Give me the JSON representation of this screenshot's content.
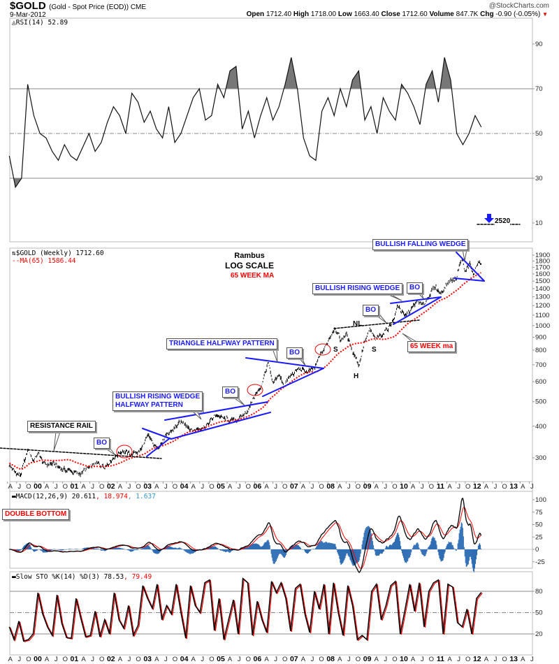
{
  "header": {
    "symbol": "$GOLD",
    "description": "(Gold - Spot Price (EOD)) CME",
    "date": "9-Mar-2012",
    "copyright": "@StockCharts.com",
    "open_label": "Open",
    "open": "1712.40",
    "high_label": "High",
    "high": "1718.00",
    "low_label": "Low",
    "low": "1663.40",
    "close_label": "Close",
    "close": "1712.60",
    "volume_label": "Volume",
    "volume": "847.7K",
    "chg_label": "Chg",
    "chg": "-0.90 (-0.05%)",
    "chg_color": "#e00000"
  },
  "chart_data": {
    "type": "line",
    "x_unit": "decimal year",
    "x_range": [
      1999.3,
      2013.6
    ],
    "x_ticks": [
      "A",
      "J",
      "O",
      "00",
      "A",
      "J",
      "O",
      "01",
      "A",
      "J",
      "O",
      "02",
      "A",
      "J",
      "O",
      "03",
      "A",
      "J",
      "O",
      "04",
      "A",
      "J",
      "O",
      "05",
      "A",
      "J",
      "O",
      "06",
      "A",
      "J",
      "O",
      "07",
      "A",
      "J",
      "O",
      "08",
      "A",
      "J",
      "O",
      "09",
      "A",
      "J",
      "O",
      "10",
      "A",
      "J",
      "O",
      "11",
      "A",
      "J",
      "O",
      "12",
      "A",
      "J",
      "O",
      "13",
      "A",
      "J"
    ],
    "rsi": {
      "legend": "RSI(14) 52.89",
      "levels": [
        70,
        50,
        30
      ],
      "y_ticks": [
        "90",
        "70",
        "50",
        "30",
        "10"
      ],
      "values": [
        40,
        26,
        30,
        72,
        58,
        50,
        48,
        42,
        38,
        45,
        40,
        38,
        44,
        50,
        42,
        46,
        55,
        62,
        58,
        50,
        68,
        64,
        55,
        60,
        52,
        48,
        62,
        46,
        50,
        58,
        66,
        70,
        56,
        58,
        72,
        66,
        78,
        80,
        52,
        60,
        48,
        58,
        66,
        56,
        62,
        72,
        84,
        70,
        48,
        40,
        38,
        60,
        66,
        58,
        70,
        62,
        74,
        78,
        56,
        62,
        50,
        66,
        60,
        56,
        72,
        68,
        62,
        54,
        72,
        78,
        64,
        84,
        74,
        50,
        45,
        50,
        58,
        52.89
      ],
      "annotation_value": "2520"
    },
    "price": {
      "legend": "$GOLD (Weekly) 1712.60",
      "ma_legend": "MA(65) 1586.44",
      "scale": "log",
      "y_ticks": [
        1900,
        1800,
        1700,
        1600,
        1500,
        1400,
        1300,
        1200,
        1100,
        1000,
        900,
        800,
        700,
        600,
        500,
        400,
        300
      ],
      "anchors": [
        [
          1999.3,
          282
        ],
        [
          1999.45,
          262
        ],
        [
          1999.6,
          255
        ],
        [
          1999.75,
          300
        ],
        [
          1999.82,
          325
        ],
        [
          1999.95,
          292
        ],
        [
          2000.1,
          312
        ],
        [
          2000.25,
          282
        ],
        [
          2000.5,
          284
        ],
        [
          2000.75,
          270
        ],
        [
          2001.0,
          266
        ],
        [
          2001.2,
          258
        ],
        [
          2001.4,
          270
        ],
        [
          2001.7,
          284
        ],
        [
          2001.9,
          278
        ],
        [
          2002.1,
          296
        ],
        [
          2002.4,
          322
        ],
        [
          2002.6,
          308
        ],
        [
          2002.9,
          322
        ],
        [
          2003.1,
          365
        ],
        [
          2003.3,
          328
        ],
        [
          2003.5,
          348
        ],
        [
          2003.7,
          380
        ],
        [
          2003.95,
          410
        ],
        [
          2004.1,
          415
        ],
        [
          2004.3,
          382
        ],
        [
          2004.5,
          395
        ],
        [
          2004.7,
          405
        ],
        [
          2004.95,
          445
        ],
        [
          2005.2,
          425
        ],
        [
          2005.45,
          420
        ],
        [
          2005.65,
          435
        ],
        [
          2005.85,
          470
        ],
        [
          2006.0,
          530
        ],
        [
          2006.15,
          560
        ],
        [
          2006.37,
          710
        ],
        [
          2006.5,
          580
        ],
        [
          2006.65,
          640
        ],
        [
          2006.8,
          585
        ],
        [
          2007.0,
          635
        ],
        [
          2007.2,
          675
        ],
        [
          2007.45,
          655
        ],
        [
          2007.65,
          680
        ],
        [
          2007.78,
          760
        ],
        [
          2007.9,
          805
        ],
        [
          2008.05,
          900
        ],
        [
          2008.2,
          990
        ],
        [
          2008.35,
          870
        ],
        [
          2008.5,
          930
        ],
        [
          2008.62,
          830
        ],
        [
          2008.78,
          740
        ],
        [
          2008.85,
          700
        ],
        [
          2009.0,
          860
        ],
        [
          2009.15,
          960
        ],
        [
          2009.3,
          880
        ],
        [
          2009.5,
          935
        ],
        [
          2009.65,
          980
        ],
        [
          2009.8,
          1060
        ],
        [
          2009.92,
          1210
        ],
        [
          2010.1,
          1080
        ],
        [
          2010.3,
          1170
        ],
        [
          2010.45,
          1250
        ],
        [
          2010.6,
          1190
        ],
        [
          2010.8,
          1350
        ],
        [
          2010.95,
          1420
        ],
        [
          2011.08,
          1340
        ],
        [
          2011.3,
          1500
        ],
        [
          2011.5,
          1530
        ],
        [
          2011.65,
          1880
        ],
        [
          2011.75,
          1620
        ],
        [
          2011.87,
          1760
        ],
        [
          2011.97,
          1580
        ],
        [
          2012.07,
          1750
        ],
        [
          2012.15,
          1780
        ],
        [
          2012.19,
          1712.6
        ]
      ],
      "ma_period": 65
    },
    "macd": {
      "legend_main": "MACD(12,26,9) 20.611",
      "legend_signal": ", 18.974",
      "legend_hist": ", 1.637",
      "signal_color": "#ff0000",
      "hist_color": "#2e6db4",
      "y_ticks": [
        100,
        75,
        50,
        25,
        0,
        -25
      ]
    },
    "sto": {
      "legend_main": "Slow STO %K(14) %D(3) 78.53",
      "legend_d": ", 79.49",
      "levels": [
        80,
        50,
        20
      ],
      "y_ticks": [
        "80",
        "50",
        "20"
      ],
      "values": [
        30,
        12,
        38,
        10,
        12,
        20,
        78,
        48,
        30,
        18,
        75,
        35,
        15,
        14,
        70,
        42,
        16,
        18,
        52,
        16,
        40,
        20,
        78,
        40,
        28,
        60,
        18,
        32,
        88,
        70,
        56,
        90,
        40,
        60,
        48,
        90,
        50,
        14,
        88,
        60,
        50,
        92,
        96,
        25,
        70,
        12,
        40,
        68,
        20,
        98,
        92,
        18,
        66,
        40,
        22,
        94,
        78,
        92,
        70,
        24,
        84,
        90,
        48,
        22,
        80,
        55,
        90,
        20,
        92,
        50,
        18,
        88,
        60,
        12,
        18,
        12,
        80,
        90,
        40,
        60,
        88,
        94,
        20,
        54,
        90,
        52,
        92,
        30,
        80,
        92,
        96,
        20,
        90,
        86,
        36,
        30,
        55,
        20,
        70,
        78.53
      ]
    },
    "annotations": {
      "rambus": "Rambus",
      "log_scale": "LOG SCALE",
      "week_ma": "65 WEEK MA",
      "resistance_rail": "RESISTANCE RAIL",
      "bo": "BO",
      "rising_wedge_halfway_1": "BULLISH RISING WEDGE",
      "rising_wedge_halfway_2": "HALFWAY PATTERN",
      "triangle_halfway": "TRIANGLE HALFWAY PATTERN",
      "rising_wedge": "BULLISH RISING WEDGE",
      "falling_wedge": "BULLISH FALLING WEDGE",
      "week_ma_callout": "65 WEEK ma",
      "neckline": "NL",
      "shoulder": "S",
      "head": "H",
      "double_bottom": "DOUBLE BOTTOM"
    }
  }
}
